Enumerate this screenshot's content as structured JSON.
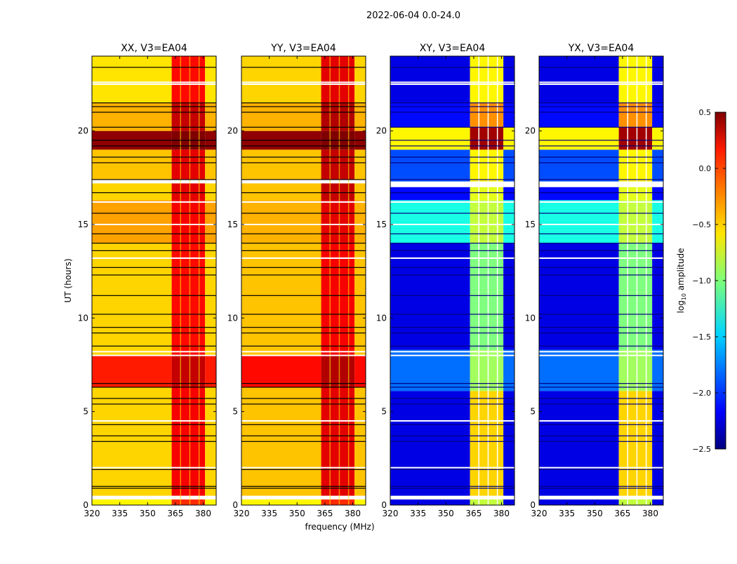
{
  "chart_data": {
    "type": "heatmap",
    "title": "2022-06-04 0.0-24.0",
    "xlabel": "frequency (MHz)",
    "ylabel": "UT (hours)",
    "xlim": [
      320,
      387
    ],
    "ylim": [
      0,
      24
    ],
    "xticks": [
      320,
      335,
      350,
      365,
      380
    ],
    "yticks": [
      0,
      5,
      10,
      15,
      20
    ],
    "colorbar": {
      "label_main": "log",
      "label_sub": "10",
      "label_tail": " amplitude",
      "range": [
        -2.5,
        0.5
      ],
      "ticks": [
        "0.5",
        "0.0",
        "−0.5",
        "−1.0",
        "−1.5",
        "−2.0",
        "−2.5"
      ],
      "colormap": "jet"
    },
    "rfi_band_mhz": [
      363,
      381
    ],
    "panels": [
      {
        "title": "XX, V3=EA04",
        "rows": [
          {
            "t": [
              0,
              0.3
            ],
            "bg": -0.6,
            "rfi": 0.0
          },
          {
            "t": [
              0.3,
              0.5
            ],
            "flagged": true
          },
          {
            "t": [
              0.5,
              6.3
            ],
            "bg": -0.5,
            "rfi": 0.15
          },
          {
            "t": [
              6.3,
              8.0
            ],
            "bg": 0.05,
            "rfi": 0.3
          },
          {
            "t": [
              8.0,
              14.0
            ],
            "bg": -0.5,
            "rfi": 0.1
          },
          {
            "t": [
              14.0,
              16.3
            ],
            "bg": -0.35,
            "rfi": 0.15
          },
          {
            "t": [
              16.3,
              17.2
            ],
            "bg": -0.5,
            "rfi": 0.2
          },
          {
            "t": [
              17.2,
              17.4
            ],
            "flagged": true
          },
          {
            "t": [
              17.4,
              19.0
            ],
            "bg": -0.45,
            "rfi": 0.2
          },
          {
            "t": [
              19.0,
              20.0
            ],
            "bg": 0.45,
            "rfi": 0.5
          },
          {
            "t": [
              20.0,
              21.5
            ],
            "bg": -0.4,
            "rfi": 0.3
          },
          {
            "t": [
              21.5,
              24.0
            ],
            "bg": -0.55,
            "rfi": 0.1
          }
        ]
      },
      {
        "title": "YY, V3=EA04",
        "rows": [
          {
            "t": [
              0,
              0.3
            ],
            "bg": -0.6,
            "rfi": 0.0
          },
          {
            "t": [
              0.3,
              0.5
            ],
            "flagged": true
          },
          {
            "t": [
              0.5,
              6.3
            ],
            "bg": -0.45,
            "rfi": 0.2
          },
          {
            "t": [
              6.3,
              8.0
            ],
            "bg": 0.1,
            "rfi": 0.35
          },
          {
            "t": [
              8.0,
              14.0
            ],
            "bg": -0.45,
            "rfi": 0.15
          },
          {
            "t": [
              14.0,
              16.3
            ],
            "bg": -0.4,
            "rfi": 0.2
          },
          {
            "t": [
              16.3,
              17.2
            ],
            "bg": -0.45,
            "rfi": 0.3
          },
          {
            "t": [
              17.2,
              17.4
            ],
            "flagged": true
          },
          {
            "t": [
              17.4,
              19.0
            ],
            "bg": -0.45,
            "rfi": 0.3
          },
          {
            "t": [
              19.0,
              20.0
            ],
            "bg": 0.45,
            "rfi": 0.5
          },
          {
            "t": [
              20.0,
              21.5
            ],
            "bg": -0.4,
            "rfi": 0.35
          },
          {
            "t": [
              21.5,
              24.0
            ],
            "bg": -0.5,
            "rfi": 0.2
          }
        ]
      },
      {
        "title": "XY, V3=EA04",
        "rows": [
          {
            "t": [
              0,
              0.3
            ],
            "bg": -2.2,
            "rfi": -0.8
          },
          {
            "t": [
              0.3,
              0.5
            ],
            "flagged": true
          },
          {
            "t": [
              0.5,
              6.1
            ],
            "bg": -2.2,
            "rfi": -0.5
          },
          {
            "t": [
              6.1,
              8.3
            ],
            "bg": -1.8,
            "rfi": -0.9
          },
          {
            "t": [
              8.3,
              14.0
            ],
            "bg": -2.2,
            "rfi": -1.0
          },
          {
            "t": [
              14.0,
              16.3
            ],
            "bg": -1.3,
            "rfi": -0.8
          },
          {
            "t": [
              16.3,
              17.0
            ],
            "bg": -2.1,
            "rfi": -0.7
          },
          {
            "t": [
              17.0,
              17.3
            ],
            "flagged": true
          },
          {
            "t": [
              17.3,
              19.0
            ],
            "bg": -1.9,
            "rfi": -0.6
          },
          {
            "t": [
              19.0,
              20.2
            ],
            "bg": -0.6,
            "rfi": 0.4
          },
          {
            "t": [
              20.2,
              21.5
            ],
            "bg": -2.1,
            "rfi": -0.3
          },
          {
            "t": [
              21.5,
              24.0
            ],
            "bg": -2.2,
            "rfi": -0.6
          }
        ]
      },
      {
        "title": "YX, V3=EA04",
        "rows": [
          {
            "t": [
              0,
              0.3
            ],
            "bg": -2.2,
            "rfi": -0.8
          },
          {
            "t": [
              0.3,
              0.5
            ],
            "flagged": true
          },
          {
            "t": [
              0.5,
              6.1
            ],
            "bg": -2.2,
            "rfi": -0.5
          },
          {
            "t": [
              6.1,
              8.3
            ],
            "bg": -1.8,
            "rfi": -0.9
          },
          {
            "t": [
              8.3,
              14.0
            ],
            "bg": -2.2,
            "rfi": -1.0
          },
          {
            "t": [
              14.0,
              16.3
            ],
            "bg": -1.3,
            "rfi": -0.8
          },
          {
            "t": [
              16.3,
              17.0
            ],
            "bg": -2.1,
            "rfi": -0.7
          },
          {
            "t": [
              17.0,
              17.3
            ],
            "flagged": true
          },
          {
            "t": [
              17.3,
              19.0
            ],
            "bg": -1.9,
            "rfi": -0.6
          },
          {
            "t": [
              19.0,
              20.2
            ],
            "bg": -0.6,
            "rfi": 0.4
          },
          {
            "t": [
              20.2,
              21.5
            ],
            "bg": -2.1,
            "rfi": -0.3
          },
          {
            "t": [
              21.5,
              24.0
            ],
            "bg": -2.2,
            "rfi": -0.6
          }
        ]
      }
    ],
    "parallel_black_lines_hours": [
      0.9,
      1.0,
      1.9,
      3.4,
      3.7,
      4.3,
      5.4,
      5.7,
      6.3,
      6.5,
      8.5,
      9.2,
      9.5,
      10.2,
      11.2,
      12.3,
      12.7,
      13.6,
      14.0,
      14.5,
      15.6,
      16.7,
      17.4,
      18.3,
      18.6,
      19.2,
      19.5,
      20.2,
      21.0,
      21.3,
      21.5,
      23.4
    ],
    "white_lines_hours": [
      2.0,
      4.5,
      8.0,
      8.2,
      13.2,
      15.0,
      16.2,
      22.5,
      22.6
    ],
    "cross_white_columns_mhz": [
      366.5,
      371.5,
      376.5
    ]
  }
}
